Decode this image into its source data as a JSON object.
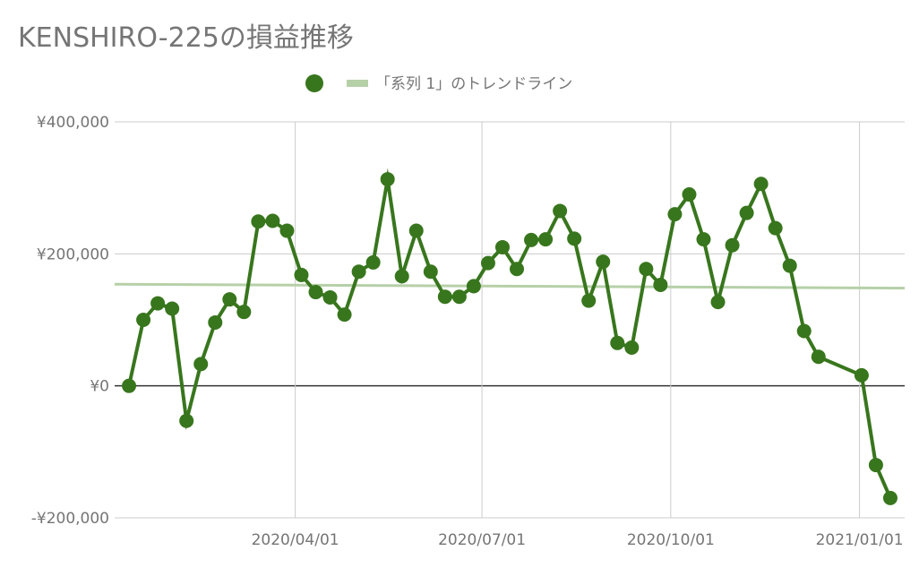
{
  "chart_data": {
    "type": "line",
    "title": "KENSHIRO-225の損益推移",
    "xlabel": "",
    "ylabel": "",
    "legend": {
      "placement": "top-center",
      "entries": [
        {
          "label": "",
          "color": "#38761d",
          "marker": "circle"
        },
        {
          "label": "「系列 1」のトレンドライン",
          "color": "#b6d0a8",
          "marker": "line"
        }
      ]
    },
    "xlim": [
      "2020-01-04",
      "2021-01-23"
    ],
    "ylim": [
      -200000,
      400000
    ],
    "y_ticks": [
      -200000,
      0,
      200000,
      400000
    ],
    "y_tick_labels": [
      "-¥200,000",
      "¥0",
      "¥200,000",
      "¥400,000"
    ],
    "x_ticks": [
      "2020-04-01",
      "2020-07-01",
      "2020-10-01",
      "2021-01-01"
    ],
    "x_tick_labels": [
      "2020/04/01",
      "2020/07/01",
      "2020/10/01",
      "2021/01/01"
    ],
    "grid": true,
    "series": [
      {
        "color": "#38761d",
        "points": [
          [
            "2020-01-11",
            0
          ],
          [
            "2020-01-18",
            100000
          ],
          [
            "2020-01-25",
            125000
          ],
          [
            "2020-02-01",
            117000
          ],
          [
            "2020-02-08",
            -53000
          ],
          [
            "2020-02-15",
            33000
          ],
          [
            "2020-02-22",
            96000
          ],
          [
            "2020-02-29",
            131000
          ],
          [
            "2020-03-07",
            112000
          ],
          [
            "2020-03-14",
            249000
          ],
          [
            "2020-03-21",
            250000
          ],
          [
            "2020-03-28",
            235000
          ],
          [
            "2020-04-04",
            168000
          ],
          [
            "2020-04-11",
            142000
          ],
          [
            "2020-04-18",
            134000
          ],
          [
            "2020-04-25",
            108000
          ],
          [
            "2020-05-02",
            173000
          ],
          [
            "2020-05-09",
            187000
          ],
          [
            "2020-05-16",
            313000
          ],
          [
            "2020-05-23",
            166000
          ],
          [
            "2020-05-30",
            235000
          ],
          [
            "2020-06-06",
            173000
          ],
          [
            "2020-06-13",
            135000
          ],
          [
            "2020-06-20",
            135000
          ],
          [
            "2020-06-27",
            151000
          ],
          [
            "2020-07-04",
            186000
          ],
          [
            "2020-07-11",
            210000
          ],
          [
            "2020-07-18",
            177000
          ],
          [
            "2020-07-25",
            221000
          ],
          [
            "2020-08-01",
            222000
          ],
          [
            "2020-08-08",
            265000
          ],
          [
            "2020-08-15",
            223000
          ],
          [
            "2020-08-22",
            129000
          ],
          [
            "2020-08-29",
            188000
          ],
          [
            "2020-09-05",
            65000
          ],
          [
            "2020-09-12",
            58000
          ],
          [
            "2020-09-19",
            177000
          ],
          [
            "2020-09-26",
            153000
          ],
          [
            "2020-10-03",
            260000
          ],
          [
            "2020-10-10",
            290000
          ],
          [
            "2020-10-17",
            222000
          ],
          [
            "2020-10-24",
            127000
          ],
          [
            "2020-10-31",
            213000
          ],
          [
            "2020-11-07",
            262000
          ],
          [
            "2020-11-14",
            306000
          ],
          [
            "2020-11-21",
            239000
          ],
          [
            "2020-11-28",
            182000
          ],
          [
            "2020-12-05",
            83000
          ],
          [
            "2020-12-12",
            44000
          ],
          [
            "2021-01-02",
            16000
          ],
          [
            "2021-01-09",
            -120000
          ],
          [
            "2021-01-16",
            -170000
          ]
        ]
      }
    ],
    "trendline": {
      "color": "#b6d0a8",
      "start": [
        "2020-01-04",
        154000
      ],
      "end": [
        "2021-01-23",
        148000
      ]
    }
  }
}
